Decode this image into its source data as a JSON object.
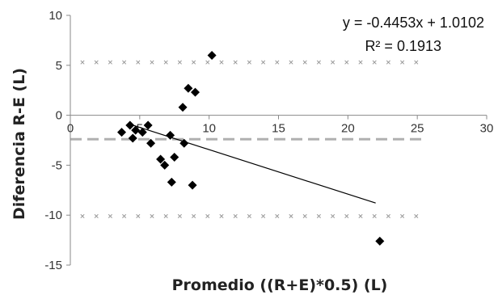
{
  "chart_data": {
    "type": "scatter",
    "xlabel": "Promedio ((R+E)*0.5) (L)",
    "ylabel": "Diferencia R-E (L)",
    "xlim": [
      0,
      30
    ],
    "ylim": [
      -15,
      10
    ],
    "x_ticks": [
      0,
      5,
      10,
      15,
      20,
      25,
      30
    ],
    "y_ticks": [
      10,
      5,
      0,
      -5,
      -10,
      -15
    ],
    "x_tick_labels": [
      "0",
      "5",
      "10",
      "15",
      "20",
      "25",
      "30"
    ],
    "y_tick_labels": [
      "10",
      "5",
      "0",
      "-5",
      "-10",
      "-15"
    ],
    "grid": false,
    "series": [
      {
        "marker": "diamond",
        "color": "#000000",
        "points": [
          {
            "x": 3.7,
            "y": -1.7
          },
          {
            "x": 4.3,
            "y": -1.0
          },
          {
            "x": 4.5,
            "y": -2.3
          },
          {
            "x": 4.7,
            "y": -1.5
          },
          {
            "x": 5.2,
            "y": -1.7
          },
          {
            "x": 5.6,
            "y": -1.0
          },
          {
            "x": 5.8,
            "y": -2.8
          },
          {
            "x": 6.5,
            "y": -4.4
          },
          {
            "x": 6.8,
            "y": -5.0
          },
          {
            "x": 7.2,
            "y": -2.0
          },
          {
            "x": 7.3,
            "y": -6.7
          },
          {
            "x": 7.5,
            "y": -4.2
          },
          {
            "x": 8.1,
            "y": 0.8
          },
          {
            "x": 8.2,
            "y": -2.8
          },
          {
            "x": 8.5,
            "y": 2.7
          },
          {
            "x": 8.8,
            "y": -7.0
          },
          {
            "x": 9.0,
            "y": 2.3
          },
          {
            "x": 10.2,
            "y": 6.0
          },
          {
            "x": 22.3,
            "y": -12.6
          }
        ]
      }
    ],
    "trendline": {
      "type": "linear",
      "slope": -0.4453,
      "intercept": 1.0102,
      "x_range": [
        4.2,
        22.0
      ],
      "equation": "y = -0.4453x + 1.0102",
      "r_squared": "R² = 0.1913"
    },
    "reference_lines": [
      {
        "y": -2.4,
        "style": "dashed",
        "color": "#b0b0b0"
      },
      {
        "y": 5.3,
        "style": "dotted",
        "color": "#9a9a9a"
      },
      {
        "y": -10.1,
        "style": "dotted",
        "color": "#9a9a9a"
      }
    ]
  }
}
